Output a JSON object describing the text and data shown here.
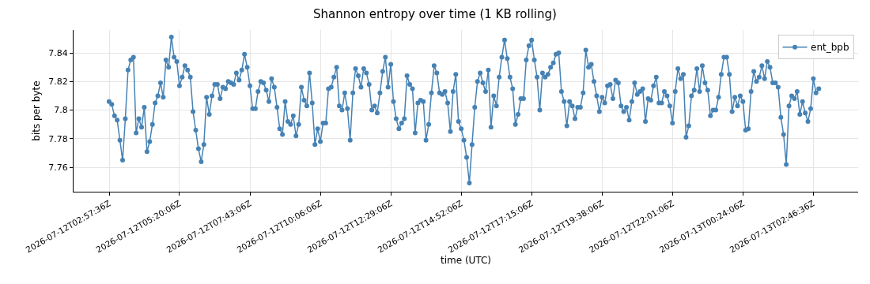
{
  "chart_data": {
    "type": "line",
    "title": "Shannon entropy over time (1 KB rolling)",
    "xlabel": "time (UTC)",
    "ylabel": "bits per byte",
    "x": [
      "2026-07-12T02:57:06",
      "2026-07-12T03:02:36",
      "2026-07-12T03:08:06",
      "2026-07-12T03:13:36",
      "2026-07-12T03:19:06",
      "2026-07-12T03:24:36",
      "2026-07-12T03:30:06",
      "2026-07-12T03:35:36",
      "2026-07-12T03:41:06",
      "2026-07-12T03:46:36",
      "2026-07-12T03:52:06",
      "2026-07-12T03:57:36",
      "2026-07-12T04:03:06",
      "2026-07-12T04:08:36",
      "2026-07-12T04:14:06",
      "2026-07-12T04:19:36",
      "2026-07-12T04:25:06",
      "2026-07-12T04:30:36",
      "2026-07-12T04:36:06",
      "2026-07-12T04:41:36",
      "2026-07-12T04:47:06",
      "2026-07-12T04:52:36",
      "2026-07-12T04:58:06",
      "2026-07-12T05:03:36",
      "2026-07-12T05:09:06",
      "2026-07-12T05:14:36",
      "2026-07-12T05:20:06",
      "2026-07-12T05:25:36",
      "2026-07-12T05:31:06",
      "2026-07-12T05:36:36",
      "2026-07-12T05:42:06",
      "2026-07-12T05:47:36",
      "2026-07-12T05:53:06",
      "2026-07-12T05:58:36",
      "2026-07-12T06:04:06",
      "2026-07-12T06:09:36",
      "2026-07-12T06:15:06",
      "2026-07-12T06:20:36",
      "2026-07-12T06:26:06",
      "2026-07-12T06:31:36",
      "2026-07-12T06:37:06",
      "2026-07-12T06:42:36",
      "2026-07-12T06:48:06",
      "2026-07-12T06:53:36",
      "2026-07-12T06:59:06",
      "2026-07-12T07:04:36",
      "2026-07-12T07:10:06",
      "2026-07-12T07:15:36",
      "2026-07-12T07:21:06",
      "2026-07-12T07:26:36",
      "2026-07-12T07:32:06",
      "2026-07-12T07:37:36",
      "2026-07-12T07:43:06",
      "2026-07-12T07:48:36",
      "2026-07-12T07:54:06",
      "2026-07-12T07:59:36",
      "2026-07-12T08:05:06",
      "2026-07-12T08:10:36",
      "2026-07-12T08:16:06",
      "2026-07-12T08:21:36",
      "2026-07-12T08:27:06",
      "2026-07-12T08:32:36",
      "2026-07-12T08:38:06",
      "2026-07-12T08:43:36",
      "2026-07-12T08:49:06",
      "2026-07-12T08:54:36",
      "2026-07-12T09:00:06",
      "2026-07-12T09:05:36",
      "2026-07-12T09:11:06",
      "2026-07-12T09:16:36",
      "2026-07-12T09:22:06",
      "2026-07-12T09:27:36",
      "2026-07-12T09:33:06",
      "2026-07-12T09:38:36",
      "2026-07-12T09:44:06",
      "2026-07-12T09:49:36",
      "2026-07-12T09:55:06",
      "2026-07-12T10:00:36",
      "2026-07-12T10:06:06",
      "2026-07-12T10:11:36",
      "2026-07-12T10:17:06",
      "2026-07-12T10:22:36",
      "2026-07-12T10:28:06",
      "2026-07-12T10:33:36",
      "2026-07-12T10:39:06",
      "2026-07-12T10:44:36",
      "2026-07-12T10:50:06",
      "2026-07-12T10:55:36",
      "2026-07-12T11:01:06",
      "2026-07-12T11:06:36",
      "2026-07-12T11:12:06",
      "2026-07-12T11:17:36",
      "2026-07-12T11:23:06",
      "2026-07-12T11:28:36",
      "2026-07-12T11:34:06",
      "2026-07-12T11:39:36",
      "2026-07-12T11:45:06",
      "2026-07-12T11:50:36",
      "2026-07-12T11:56:06",
      "2026-07-12T12:01:36",
      "2026-07-12T12:07:06",
      "2026-07-12T12:12:36",
      "2026-07-12T12:18:06",
      "2026-07-12T12:23:36",
      "2026-07-12T12:29:06",
      "2026-07-12T12:34:36",
      "2026-07-12T12:40:06",
      "2026-07-12T12:45:36",
      "2026-07-12T12:51:06",
      "2026-07-12T12:56:36",
      "2026-07-12T13:02:06",
      "2026-07-12T13:07:36",
      "2026-07-12T13:13:06",
      "2026-07-12T13:18:36",
      "2026-07-12T13:24:06",
      "2026-07-12T13:29:36",
      "2026-07-12T13:35:06",
      "2026-07-12T13:40:36",
      "2026-07-12T13:46:06",
      "2026-07-12T13:51:36",
      "2026-07-12T13:57:06",
      "2026-07-12T14:02:36",
      "2026-07-12T14:08:06",
      "2026-07-12T14:13:36",
      "2026-07-12T14:19:06",
      "2026-07-12T14:24:36",
      "2026-07-12T14:30:06",
      "2026-07-12T14:35:36",
      "2026-07-12T14:41:06",
      "2026-07-12T14:46:36",
      "2026-07-12T14:52:06",
      "2026-07-12T14:57:36",
      "2026-07-12T15:03:06",
      "2026-07-12T15:08:36",
      "2026-07-12T15:14:06",
      "2026-07-12T15:19:36",
      "2026-07-12T15:25:06",
      "2026-07-12T15:30:36",
      "2026-07-12T15:36:06",
      "2026-07-12T15:41:36",
      "2026-07-12T15:47:06",
      "2026-07-12T15:52:36",
      "2026-07-12T15:58:06",
      "2026-07-12T16:03:36",
      "2026-07-12T16:09:06",
      "2026-07-12T16:14:36",
      "2026-07-12T16:20:06",
      "2026-07-12T16:25:36",
      "2026-07-12T16:31:06",
      "2026-07-12T16:36:36",
      "2026-07-12T16:42:06",
      "2026-07-12T16:47:36",
      "2026-07-12T16:53:06",
      "2026-07-12T16:58:36",
      "2026-07-12T17:04:06",
      "2026-07-12T17:09:36",
      "2026-07-12T17:15:06",
      "2026-07-12T17:20:36",
      "2026-07-12T17:26:06",
      "2026-07-12T17:31:36",
      "2026-07-12T17:37:06",
      "2026-07-12T17:42:36",
      "2026-07-12T17:48:06",
      "2026-07-12T17:53:36",
      "2026-07-12T17:59:06",
      "2026-07-12T18:04:36",
      "2026-07-12T18:10:06",
      "2026-07-12T18:15:36",
      "2026-07-12T18:21:06",
      "2026-07-12T18:26:36",
      "2026-07-12T18:32:06",
      "2026-07-12T18:37:36",
      "2026-07-12T18:43:06",
      "2026-07-12T18:48:36",
      "2026-07-12T18:54:06",
      "2026-07-12T18:59:36",
      "2026-07-12T19:05:06",
      "2026-07-12T19:10:36",
      "2026-07-12T19:16:06",
      "2026-07-12T19:21:36",
      "2026-07-12T19:27:06",
      "2026-07-12T19:32:36",
      "2026-07-12T19:38:06",
      "2026-07-12T19:43:36",
      "2026-07-12T19:49:06",
      "2026-07-12T19:54:36",
      "2026-07-12T20:00:06",
      "2026-07-12T20:05:36",
      "2026-07-12T20:11:06",
      "2026-07-12T20:16:36",
      "2026-07-12T20:22:06",
      "2026-07-12T20:27:36",
      "2026-07-12T20:33:06",
      "2026-07-12T20:38:36",
      "2026-07-12T20:44:06",
      "2026-07-12T20:49:36",
      "2026-07-12T20:55:06",
      "2026-07-12T21:00:36",
      "2026-07-12T21:06:06",
      "2026-07-12T21:11:36",
      "2026-07-12T21:17:06",
      "2026-07-12T21:22:36",
      "2026-07-12T21:28:06",
      "2026-07-12T21:33:36",
      "2026-07-12T21:39:06",
      "2026-07-12T21:44:36",
      "2026-07-12T21:50:06",
      "2026-07-12T21:55:36",
      "2026-07-12T22:01:06",
      "2026-07-12T22:06:36",
      "2026-07-12T22:12:06",
      "2026-07-12T22:17:36",
      "2026-07-12T22:23:06",
      "2026-07-12T22:28:36",
      "2026-07-12T22:34:06",
      "2026-07-12T22:39:36",
      "2026-07-12T22:45:06",
      "2026-07-12T22:50:36",
      "2026-07-12T22:56:06",
      "2026-07-12T23:01:36",
      "2026-07-12T23:07:06",
      "2026-07-12T23:12:36",
      "2026-07-12T23:18:06",
      "2026-07-12T23:23:36",
      "2026-07-12T23:29:06",
      "2026-07-12T23:34:36",
      "2026-07-12T23:40:06",
      "2026-07-12T23:45:36",
      "2026-07-12T23:51:06",
      "2026-07-12T23:56:36",
      "2026-07-13T00:02:06",
      "2026-07-13T00:07:36",
      "2026-07-13T00:13:06",
      "2026-07-13T00:18:36",
      "2026-07-13T00:24:06",
      "2026-07-13T00:29:36",
      "2026-07-13T00:35:06",
      "2026-07-13T00:40:36",
      "2026-07-13T00:46:06",
      "2026-07-13T00:51:36",
      "2026-07-13T00:57:06",
      "2026-07-13T01:02:36",
      "2026-07-13T01:08:06",
      "2026-07-13T01:13:36",
      "2026-07-13T01:19:06",
      "2026-07-13T01:24:36",
      "2026-07-13T01:30:06",
      "2026-07-13T01:35:36",
      "2026-07-13T01:41:06",
      "2026-07-13T01:46:36",
      "2026-07-13T01:52:06",
      "2026-07-13T01:57:36",
      "2026-07-13T02:03:06",
      "2026-07-13T02:08:36",
      "2026-07-13T02:14:06",
      "2026-07-13T02:19:36",
      "2026-07-13T02:25:06",
      "2026-07-13T02:30:36",
      "2026-07-13T02:36:06",
      "2026-07-13T02:41:36",
      "2026-07-13T02:47:06",
      "2026-07-13T02:52:36",
      "2026-07-13T02:58:06"
    ],
    "series": [
      {
        "name": "ent_bpb",
        "color": "#4682b4",
        "values": [
          7.806,
          7.804,
          7.796,
          7.793,
          7.779,
          7.765,
          7.794,
          7.828,
          7.835,
          7.837,
          7.784,
          7.794,
          7.788,
          7.802,
          7.771,
          7.778,
          7.79,
          7.805,
          7.81,
          7.819,
          7.809,
          7.835,
          7.83,
          7.851,
          7.837,
          7.834,
          7.817,
          7.823,
          7.831,
          7.828,
          7.823,
          7.799,
          7.786,
          7.773,
          7.764,
          7.776,
          7.809,
          7.797,
          7.81,
          7.818,
          7.818,
          7.808,
          7.816,
          7.815,
          7.82,
          7.819,
          7.818,
          7.826,
          7.821,
          7.828,
          7.839,
          7.83,
          7.817,
          7.801,
          7.801,
          7.813,
          7.82,
          7.819,
          7.814,
          7.806,
          7.822,
          7.816,
          7.802,
          7.787,
          7.783,
          7.806,
          7.792,
          7.79,
          7.796,
          7.782,
          7.79,
          7.816,
          7.807,
          7.803,
          7.826,
          7.805,
          7.776,
          7.787,
          7.778,
          7.791,
          7.791,
          7.815,
          7.816,
          7.823,
          7.83,
          7.803,
          7.8,
          7.812,
          7.801,
          7.779,
          7.812,
          7.829,
          7.824,
          7.816,
          7.829,
          7.826,
          7.818,
          7.8,
          7.803,
          7.798,
          7.812,
          7.827,
          7.837,
          7.816,
          7.832,
          7.806,
          7.794,
          7.787,
          7.791,
          7.794,
          7.824,
          7.818,
          7.815,
          7.784,
          7.805,
          7.807,
          7.806,
          7.779,
          7.79,
          7.812,
          7.831,
          7.826,
          7.812,
          7.811,
          7.813,
          7.805,
          7.785,
          7.813,
          7.825,
          7.792,
          7.787,
          7.779,
          7.767,
          7.749,
          7.776,
          7.802,
          7.82,
          7.826,
          7.819,
          7.813,
          7.828,
          7.788,
          7.81,
          7.803,
          7.823,
          7.837,
          7.849,
          7.836,
          7.823,
          7.815,
          7.79,
          7.797,
          7.808,
          7.808,
          7.835,
          7.845,
          7.849,
          7.835,
          7.823,
          7.8,
          7.826,
          7.823,
          7.825,
          7.83,
          7.833,
          7.839,
          7.84,
          7.813,
          7.806,
          7.789,
          7.806,
          7.803,
          7.794,
          7.802,
          7.802,
          7.812,
          7.842,
          7.83,
          7.832,
          7.82,
          7.81,
          7.799,
          7.809,
          7.805,
          7.817,
          7.818,
          7.808,
          7.821,
          7.819,
          7.803,
          7.799,
          7.802,
          7.793,
          7.806,
          7.819,
          7.811,
          7.813,
          7.815,
          7.792,
          7.808,
          7.807,
          7.817,
          7.823,
          7.805,
          7.805,
          7.813,
          7.81,
          7.803,
          7.791,
          7.813,
          7.829,
          7.822,
          7.825,
          7.781,
          7.789,
          7.81,
          7.814,
          7.829,
          7.813,
          7.831,
          7.819,
          7.814,
          7.796,
          7.8,
          7.8,
          7.809,
          7.825,
          7.837,
          7.837,
          7.825,
          7.799,
          7.809,
          7.803,
          7.81,
          7.806,
          7.786,
          7.787,
          7.813,
          7.827,
          7.82,
          7.823,
          7.831,
          7.822,
          7.834,
          7.83,
          7.819,
          7.819,
          7.816,
          7.795,
          7.783,
          7.762,
          7.803,
          7.81,
          7.808,
          7.813,
          7.797,
          7.806,
          7.798,
          7.792,
          7.801,
          7.822,
          7.812,
          7.815
        ]
      }
    ],
    "xlim": [
      "2026-07-12T01:45",
      "2026-07-13T04:18"
    ],
    "xticks": [
      {
        "value": "2026-07-12T02:57:36",
        "label": "2026-07-12T02:57:36Z"
      },
      {
        "value": "2026-07-12T05:20:06",
        "label": "2026-07-12T05:20:06Z"
      },
      {
        "value": "2026-07-12T07:43:06",
        "label": "2026-07-12T07:43:06Z"
      },
      {
        "value": "2026-07-12T10:06:06",
        "label": "2026-07-12T10:06:06Z"
      },
      {
        "value": "2026-07-12T12:29:06",
        "label": "2026-07-12T12:29:06Z"
      },
      {
        "value": "2026-07-12T14:52:06",
        "label": "2026-07-12T14:52:06Z"
      },
      {
        "value": "2026-07-12T17:15:06",
        "label": "2026-07-12T17:15:06Z"
      },
      {
        "value": "2026-07-12T19:38:06",
        "label": "2026-07-12T19:38:06Z"
      },
      {
        "value": "2026-07-12T22:01:06",
        "label": "2026-07-12T22:01:06Z"
      },
      {
        "value": "2026-07-13T00:24:06",
        "label": "2026-07-13T00:24:06Z"
      },
      {
        "value": "2026-07-13T02:46:36",
        "label": "2026-07-13T02:46:36Z"
      }
    ],
    "ylim": [
      7.743,
      7.856
    ],
    "yticks": [
      7.76,
      7.78,
      7.8,
      7.82,
      7.84
    ],
    "grid": true,
    "legend": "top right",
    "marker": "circle",
    "line_style": "solid"
  }
}
